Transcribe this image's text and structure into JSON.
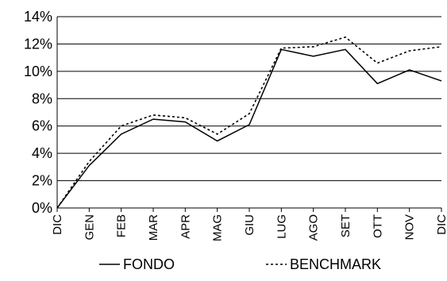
{
  "chart_data": {
    "type": "line",
    "title": "",
    "xlabel": "",
    "ylabel": "",
    "categories": [
      "DIC",
      "GEN",
      "FEB",
      "MAR",
      "APR",
      "MAG",
      "GIU",
      "LUG",
      "AGO",
      "SET",
      "OTT",
      "NOV",
      "DIC"
    ],
    "ylim": [
      0,
      14
    ],
    "ytick_values": [
      0,
      2,
      4,
      6,
      8,
      10,
      12,
      14
    ],
    "ytick_labels": [
      "0%",
      "2%",
      "4%",
      "6%",
      "8%",
      "10%",
      "12%",
      "14%"
    ],
    "grid": "horizontal",
    "legend_position": "bottom",
    "series": [
      {
        "name": "FONDO",
        "style": "solid",
        "color": "#000000",
        "values": [
          0,
          3.1,
          5.4,
          6.5,
          6.3,
          4.9,
          6.1,
          11.6,
          11.1,
          11.6,
          9.1,
          10.1,
          9.3
        ]
      },
      {
        "name": "BENCHMARK",
        "style": "dotted",
        "color": "#000000",
        "values": [
          0,
          3.4,
          6.0,
          6.8,
          6.6,
          5.4,
          6.9,
          11.7,
          11.8,
          12.5,
          10.6,
          11.5,
          11.8
        ]
      }
    ]
  }
}
